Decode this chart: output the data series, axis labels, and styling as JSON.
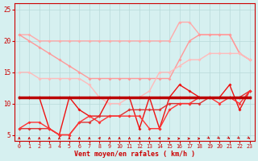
{
  "title": "",
  "xlabel": "Vent moyen/en rafales ( km/h )",
  "bg_color": "#d6f0f0",
  "grid_color": "#b8dada",
  "xlim": [
    -0.5,
    23.5
  ],
  "ylim": [
    4,
    26
  ],
  "yticks": [
    5,
    10,
    15,
    20,
    25
  ],
  "xticks": [
    0,
    1,
    2,
    3,
    4,
    5,
    6,
    7,
    8,
    9,
    10,
    11,
    12,
    13,
    14,
    15,
    16,
    17,
    18,
    19,
    20,
    21,
    22,
    23
  ],
  "series": [
    {
      "name": "top_pink_light",
      "x": [
        0,
        1,
        2,
        3,
        4,
        5,
        6,
        7,
        8,
        9,
        10,
        11,
        12,
        13,
        14,
        15,
        16,
        17,
        18,
        19,
        20,
        21,
        22,
        23
      ],
      "y": [
        21,
        21,
        20,
        20,
        20,
        20,
        20,
        20,
        20,
        20,
        20,
        20,
        20,
        20,
        20,
        20,
        23,
        23,
        21,
        21,
        21,
        21,
        18,
        17
      ],
      "color": "#ffaaaa",
      "lw": 1.0,
      "marker": "D",
      "ms": 2.0,
      "zorder": 2
    },
    {
      "name": "second_pink",
      "x": [
        0,
        1,
        2,
        3,
        4,
        5,
        6,
        7,
        8,
        9,
        10,
        11,
        12,
        13,
        14,
        15,
        16,
        17,
        18,
        19,
        20,
        21,
        22,
        23
      ],
      "y": [
        21,
        20,
        19,
        18,
        17,
        16,
        15,
        14,
        14,
        14,
        14,
        14,
        14,
        14,
        14,
        14,
        17,
        20,
        21,
        21,
        21,
        21,
        18,
        17
      ],
      "color": "#ff9999",
      "lw": 1.0,
      "marker": "D",
      "ms": 2.0,
      "zorder": 2
    },
    {
      "name": "third_pink",
      "x": [
        0,
        1,
        2,
        3,
        4,
        5,
        6,
        7,
        8,
        9,
        10,
        11,
        12,
        13,
        14,
        15,
        16,
        17,
        18,
        19,
        20,
        21,
        22,
        23
      ],
      "y": [
        15,
        15,
        14,
        14,
        14,
        14,
        14,
        13,
        11,
        10,
        10,
        11,
        11,
        12,
        15,
        15,
        16,
        17,
        17,
        18,
        18,
        18,
        18,
        17
      ],
      "color": "#ffbbbb",
      "lw": 1.0,
      "marker": "D",
      "ms": 2.0,
      "zorder": 2
    },
    {
      "name": "flat_dark_red",
      "x": [
        0,
        1,
        2,
        3,
        4,
        5,
        6,
        7,
        8,
        9,
        10,
        11,
        12,
        13,
        14,
        15,
        16,
        17,
        18,
        19,
        20,
        21,
        22,
        23
      ],
      "y": [
        11,
        11,
        11,
        11,
        11,
        11,
        11,
        11,
        11,
        11,
        11,
        11,
        11,
        11,
        11,
        11,
        11,
        11,
        11,
        11,
        11,
        11,
        11,
        11
      ],
      "color": "#bb0000",
      "lw": 2.5,
      "marker": "D",
      "ms": 2.0,
      "zorder": 4
    },
    {
      "name": "jagged_red1",
      "x": [
        0,
        1,
        2,
        3,
        4,
        5,
        6,
        7,
        8,
        9,
        10,
        11,
        12,
        13,
        14,
        15,
        16,
        17,
        18,
        19,
        20,
        21,
        22,
        23
      ],
      "y": [
        11,
        11,
        11,
        6,
        5,
        11,
        9,
        8,
        8,
        11,
        11,
        11,
        6,
        11,
        6,
        11,
        13,
        12,
        11,
        11,
        11,
        13,
        9,
        12
      ],
      "color": "#ee1111",
      "lw": 1.0,
      "marker": "D",
      "ms": 2.0,
      "zorder": 3
    },
    {
      "name": "rising_red",
      "x": [
        0,
        1,
        2,
        3,
        4,
        5,
        6,
        7,
        8,
        9,
        10,
        11,
        12,
        13,
        14,
        15,
        16,
        17,
        18,
        19,
        20,
        21,
        22,
        23
      ],
      "y": [
        6,
        6,
        6,
        6,
        5,
        5,
        7,
        7,
        8,
        8,
        8,
        9,
        9,
        9,
        9,
        10,
        10,
        10,
        10,
        11,
        11,
        11,
        11,
        12
      ],
      "color": "#dd3333",
      "lw": 1.0,
      "marker": "D",
      "ms": 2.0,
      "zorder": 3
    },
    {
      "name": "crossing_red",
      "x": [
        0,
        1,
        2,
        3,
        4,
        5,
        6,
        7,
        8,
        9,
        10,
        11,
        12,
        13,
        14,
        15,
        16,
        17,
        18,
        19,
        20,
        21,
        22,
        23
      ],
      "y": [
        6,
        7,
        7,
        6,
        5,
        5,
        7,
        8,
        7,
        8,
        8,
        8,
        8,
        6,
        6,
        9,
        10,
        10,
        11,
        11,
        10,
        11,
        10,
        12
      ],
      "color": "#ff3333",
      "lw": 1.0,
      "marker": "D",
      "ms": 2.0,
      "zorder": 3
    }
  ],
  "arrows": {
    "y": 4.4,
    "color": "#cc0000",
    "angles": [
      180,
      180,
      180,
      180,
      180,
      180,
      180,
      180,
      202,
      180,
      180,
      180,
      180,
      180,
      202,
      270,
      270,
      270,
      270,
      315,
      315,
      315,
      315,
      315
    ]
  }
}
